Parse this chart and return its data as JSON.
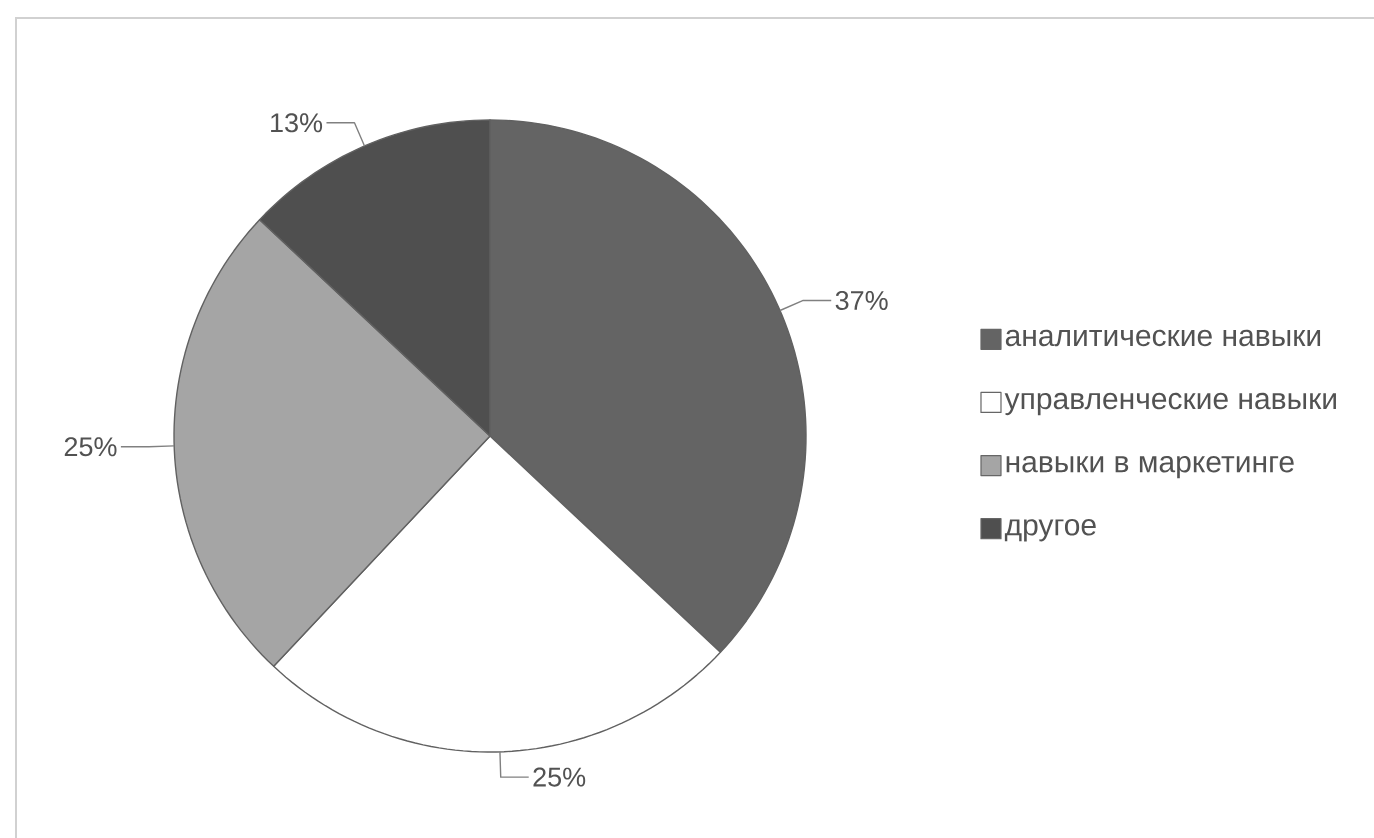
{
  "chart_data": {
    "type": "pie",
    "categories": [
      "аналитические навыки",
      "управленческие навыки",
      "навыки в маркетинге",
      "другое"
    ],
    "values": [
      37,
      25,
      25,
      13
    ],
    "colors": [
      "#646464",
      "#ffffff",
      "#a5a5a5",
      "#4f4f4f"
    ],
    "value_labels": [
      "37%",
      "25%",
      "25%",
      "13%"
    ],
    "legend": "right"
  }
}
